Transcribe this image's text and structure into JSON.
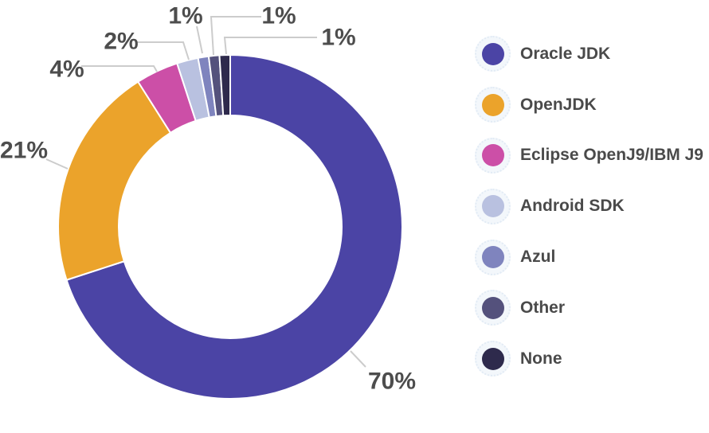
{
  "chart_data": {
    "type": "pie",
    "subtype": "donut",
    "title": "",
    "unit": "%",
    "legend_position": "right",
    "start_angle_deg": 0,
    "clockwise": true,
    "series": [
      {
        "label": "Oracle JDK",
        "value": 70,
        "data_label": "70%",
        "color": "#4b44a5"
      },
      {
        "label": "OpenJDK",
        "value": 21,
        "data_label": "21%",
        "color": "#eba32b"
      },
      {
        "label": "Eclipse OpenJ9/IBM J9",
        "value": 4,
        "data_label": "4%",
        "color": "#cc4fa7"
      },
      {
        "label": "Android SDK",
        "value": 2,
        "data_label": "2%",
        "color": "#b9c1e0"
      },
      {
        "label": "Azul",
        "value": 1,
        "data_label": "1%",
        "color": "#7f84be"
      },
      {
        "label": "Other",
        "value": 1,
        "data_label": "1%",
        "color": "#54517c"
      },
      {
        "label": "None",
        "value": 1,
        "data_label": "1%",
        "color": "#2e2a4c"
      }
    ],
    "colors": {
      "label_text": "#4d4d4d",
      "leader_line": "#cccccc",
      "legend_text": "#4a4a4a",
      "legend_halo": "#f3f7fb"
    }
  }
}
